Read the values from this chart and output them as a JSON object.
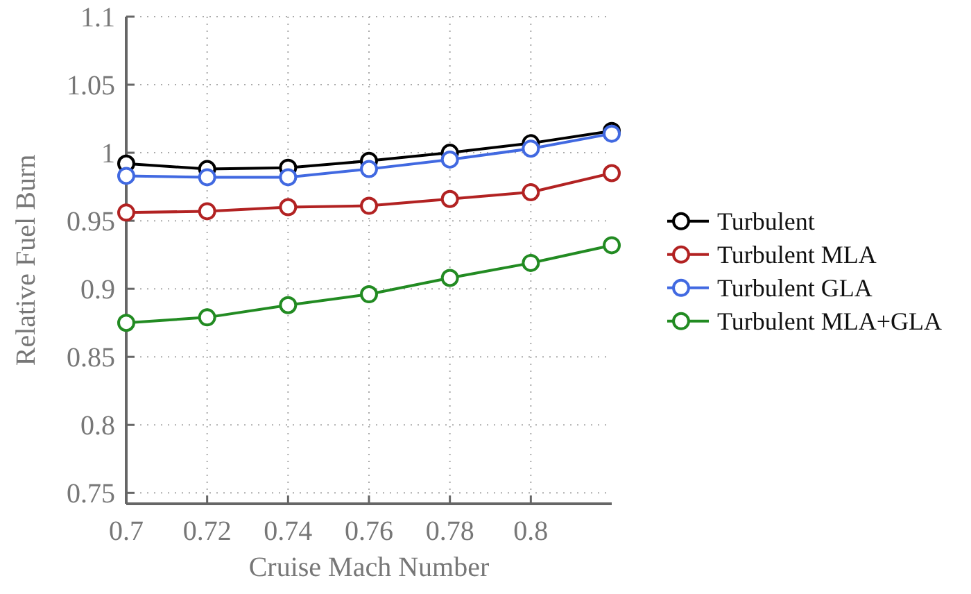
{
  "chart_data": {
    "type": "line",
    "xlabel": "Cruise Mach Number",
    "ylabel": "Relative Fuel Burn",
    "x": [
      0.7,
      0.72,
      0.74,
      0.76,
      0.78,
      0.8,
      0.82
    ],
    "xlim": [
      0.7,
      0.82
    ],
    "xticks": [
      0.7,
      0.72,
      0.74,
      0.76,
      0.78,
      0.8
    ],
    "ylim": [
      0.742,
      1.1
    ],
    "yticks": [
      0.75,
      0.8,
      0.85,
      0.9,
      0.95,
      1,
      1.05,
      1.1
    ],
    "grid": true,
    "legend": "right",
    "marker": "circle",
    "line_style": "solid",
    "series": [
      {
        "name": "Turbulent",
        "color": "#000000",
        "values": [
          0.992,
          0.988,
          0.989,
          0.994,
          1.0,
          1.007,
          1.016
        ]
      },
      {
        "name": "Turbulent MLA",
        "color": "#b22222",
        "values": [
          0.956,
          0.957,
          0.96,
          0.961,
          0.966,
          0.971,
          0.985
        ]
      },
      {
        "name": "Turbulent GLA",
        "color": "#4169e1",
        "values": [
          0.983,
          0.982,
          0.982,
          0.988,
          0.995,
          1.003,
          1.014
        ]
      },
      {
        "name": "Turbulent MLA+GLA",
        "color": "#228b22",
        "values": [
          0.875,
          0.879,
          0.888,
          0.896,
          0.908,
          0.919,
          0.932
        ]
      }
    ]
  }
}
